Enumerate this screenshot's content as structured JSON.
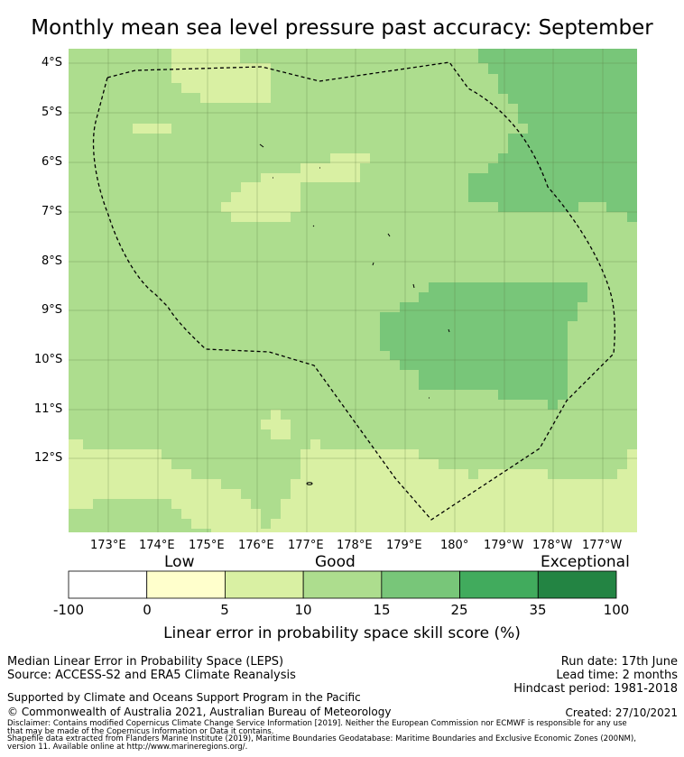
{
  "title": "Monthly mean sea level pressure past accuracy: September",
  "map": {
    "lat_labels": [
      "4°S",
      "5°S",
      "6°S",
      "7°S",
      "8°S",
      "9°S",
      "10°S",
      "11°S",
      "12°S"
    ],
    "lon_labels": [
      "173°E",
      "174°E",
      "175°E",
      "176°E",
      "177°E",
      "178°E",
      "179°E",
      "180°",
      "179°W",
      "178°W",
      "177°W"
    ]
  },
  "colorbar": {
    "category_labels": {
      "low": "Low",
      "good": "Good",
      "exceptional": "Exceptional"
    },
    "ticks": [
      "-100",
      "0",
      "5",
      "10",
      "15",
      "25",
      "35",
      "100"
    ],
    "colors": [
      "#ffffff",
      "#ffffcc",
      "#d9f0a3",
      "#addd8e",
      "#78c679",
      "#41ab5d",
      "#238443"
    ],
    "title": "Linear error in probability space skill score (%)"
  },
  "info": {
    "method": "Median Linear Error in Probability Space (LEPS)",
    "source": "Source: ACCESS-S2 and ERA5 Climate Reanalysis",
    "run_date": "Run date: 17th June",
    "lead_time": "Lead time: 2 months",
    "hindcast": "Hindcast period: 1981-2018",
    "supported": "Supported by Climate and Oceans Support Program in the Pacific",
    "copyright": "© Commonwealth of Australia 2021, Australian Bureau of Meteorology",
    "created": "Created: 27/10/2021",
    "disclaimer_1": "Disclaimer: Contains modified Copernicus Climate Change Service Information [2019]. Neither the European Commission nor ECMWF is responsible for any use",
    "disclaimer_2": "that may be made of the Copernicus Information or Data it contains.",
    "shapefile_1": "Shapefile data extracted from Flanders Marine Institute (2019), Maritime Boundaries Geodatabase: Maritime Boundaries and Exclusive Economic Zones (200NM),",
    "shapefile_2": "version 11. Available online at http://www.marineregions.org/."
  }
}
